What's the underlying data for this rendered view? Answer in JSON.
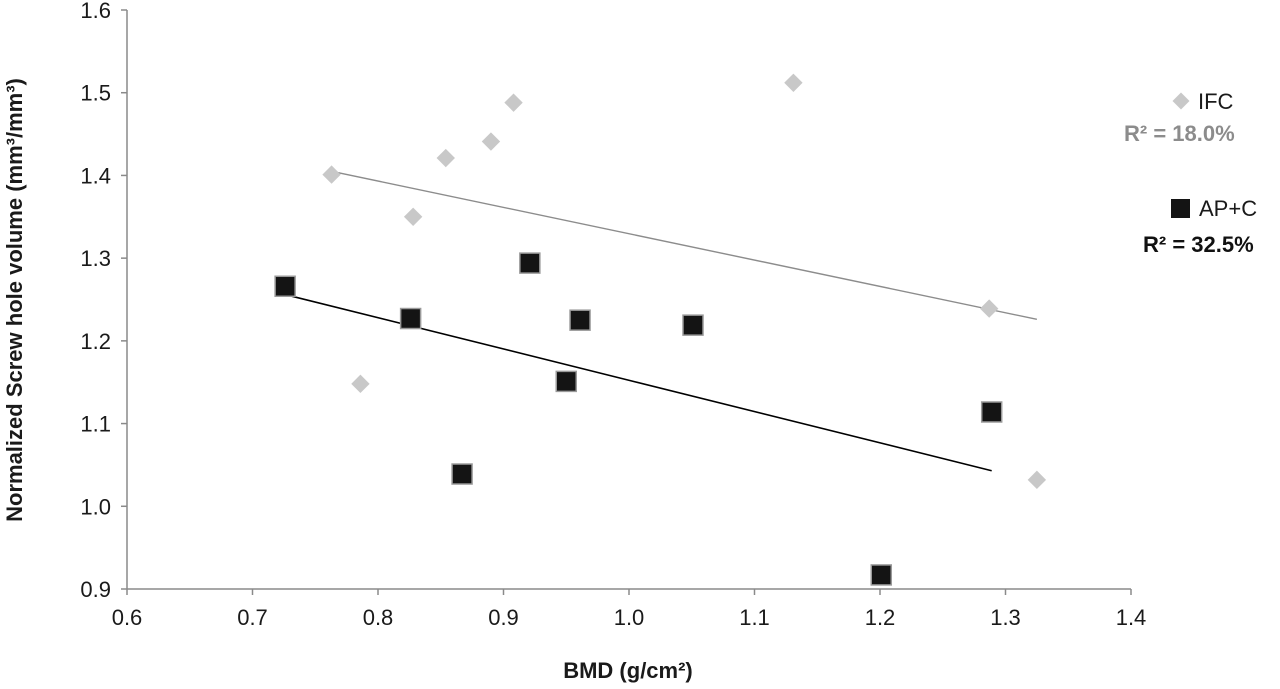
{
  "chart_data": {
    "type": "scatter",
    "xlabel": "BMD (g/cm²)",
    "ylabel": "Normalized Screw hole volume (mm³/mm³)",
    "xlim": [
      0.6,
      1.4
    ],
    "ylim": [
      0.9,
      1.6
    ],
    "x_ticks": [
      "0.6",
      "0.7",
      "0.8",
      "0.9",
      "1.0",
      "1.1",
      "1.2",
      "1.3",
      "1.4"
    ],
    "y_ticks": [
      "0.9",
      "1.0",
      "1.1",
      "1.2",
      "1.3",
      "1.4",
      "1.5",
      "1.6"
    ],
    "grid": false,
    "legend_position": "right",
    "series": [
      {
        "name": "IFC",
        "marker": "diamond",
        "color": "#c8c8c8",
        "trendline_color": "#8c8c8c",
        "r_squared_label": "R² = 18.0%",
        "points": [
          {
            "x": 0.763,
            "y": 1.401
          },
          {
            "x": 0.786,
            "y": 1.148
          },
          {
            "x": 0.828,
            "y": 1.35
          },
          {
            "x": 0.854,
            "y": 1.421
          },
          {
            "x": 0.89,
            "y": 1.441
          },
          {
            "x": 0.908,
            "y": 1.488
          },
          {
            "x": 1.131,
            "y": 1.512
          },
          {
            "x": 1.287,
            "y": 1.239
          },
          {
            "x": 1.325,
            "y": 1.032
          }
        ],
        "trendline": {
          "x": [
            0.763,
            1.325
          ],
          "y": [
            1.405,
            1.226
          ]
        }
      },
      {
        "name": "AP+C",
        "marker": "square",
        "color": "#141414",
        "trendline_color": "#000000",
        "r_squared_label": "R² = 32.5%",
        "points": [
          {
            "x": 0.726,
            "y": 1.266
          },
          {
            "x": 0.826,
            "y": 1.227
          },
          {
            "x": 0.867,
            "y": 1.039
          },
          {
            "x": 0.921,
            "y": 1.294
          },
          {
            "x": 0.95,
            "y": 1.151
          },
          {
            "x": 0.961,
            "y": 1.225
          },
          {
            "x": 1.051,
            "y": 1.219
          },
          {
            "x": 1.201,
            "y": 0.917
          },
          {
            "x": 1.289,
            "y": 1.114
          }
        ],
        "trendline": {
          "x": [
            0.726,
            1.289
          ],
          "y": [
            1.256,
            1.043
          ]
        }
      }
    ]
  }
}
